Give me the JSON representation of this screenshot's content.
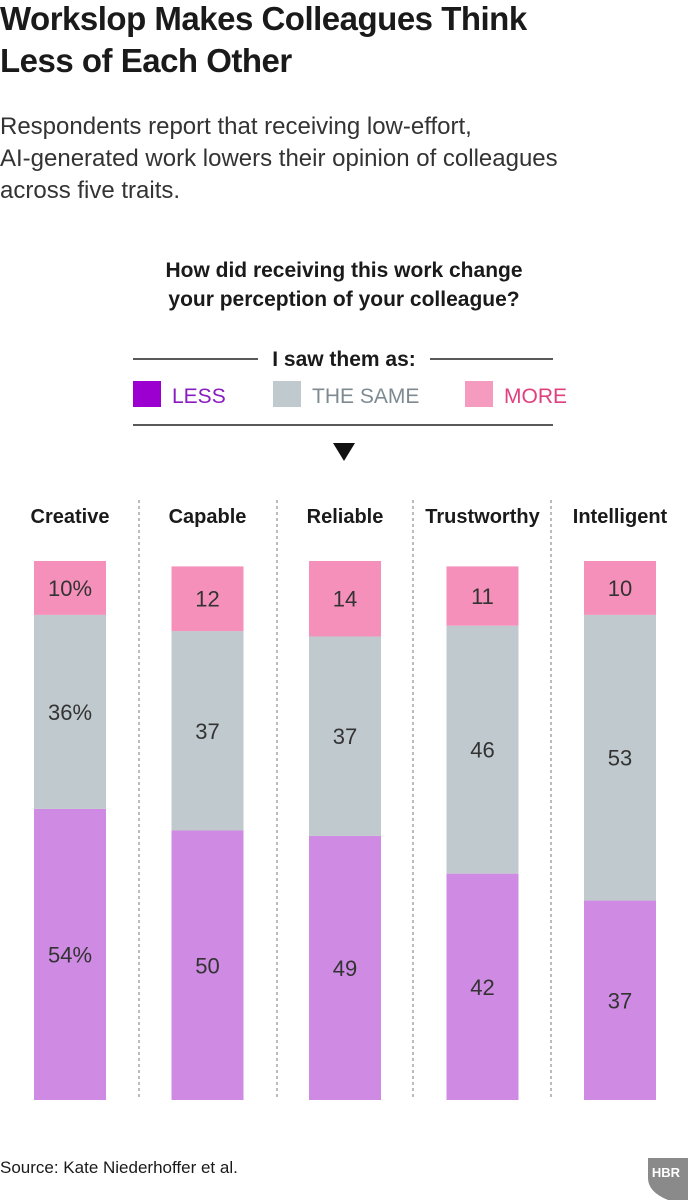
{
  "chart_data": {
    "type": "stacked_bar",
    "title": [
      "Workslop Makes Colleagues Think",
      "Less of Each Other"
    ],
    "subtitle": [
      "Respondents report that receiving low-effort,",
      "AI-generated work lowers their opinion of colleagues",
      "across five traits."
    ],
    "question": [
      "How did receiving this work change",
      "your perception of your colleague?"
    ],
    "legend_title": "I saw them as:",
    "categories": [
      "Creative",
      "Capable",
      "Reliable",
      "Trustworthy",
      "Intelligent"
    ],
    "ylim": [
      0,
      100
    ],
    "series": [
      {
        "name": "LESS",
        "color": "#cf8be3",
        "legend_color": "#9c00d0",
        "text_color": "#8a1cc0",
        "values": [
          54,
          50,
          49,
          42,
          37
        ],
        "value_labels": [
          "54%",
          "50",
          "49",
          "42",
          "37"
        ]
      },
      {
        "name": "THE SAME",
        "color": "#c0c9ce",
        "legend_color": "#c0c9ce",
        "text_color": "#7e8a91",
        "values": [
          36,
          37,
          37,
          46,
          53
        ],
        "value_labels": [
          "36%",
          "37",
          "37",
          "46",
          "53"
        ]
      },
      {
        "name": "MORE",
        "color": "#f590ba",
        "legend_color": "#f59bc0",
        "text_color": "#e0407f",
        "values": [
          10,
          12,
          14,
          11,
          10
        ],
        "value_labels": [
          "10%",
          "12",
          "14",
          "11",
          "10"
        ]
      }
    ],
    "source": "Source: Kate Niederhoffer et al.",
    "logo": "HBR"
  }
}
